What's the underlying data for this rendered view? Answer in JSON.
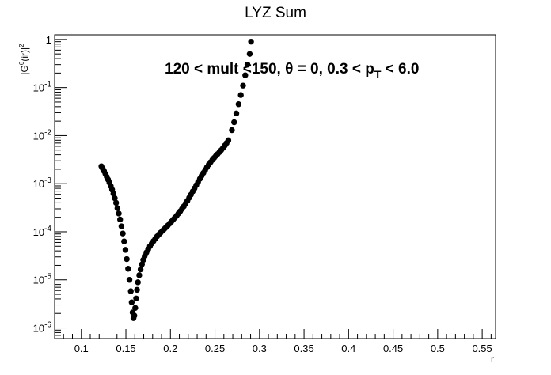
{
  "chart_data": {
    "type": "scatter",
    "title": "LYZ Sum",
    "xlabel": "r",
    "ylabel": "|Gθ(ir)|2",
    "annotation": "120 < mult <150, θ = 0, 0.3 < pT < 6.0",
    "x_scale": "linear",
    "y_scale": "log",
    "xlim": [
      0.07,
      0.565
    ],
    "ylim": [
      6e-07,
      1.25
    ],
    "grid": false,
    "legend": "none",
    "marker_color": "#000000",
    "x_ticks": [
      "0.1",
      "0.15",
      "0.2",
      "0.25",
      "0.3",
      "0.35",
      "0.4",
      "0.45",
      "0.5",
      "0.55"
    ],
    "y_ticks": [
      {
        "base": "10",
        "exp": "-6"
      },
      {
        "base": "10",
        "exp": "-5"
      },
      {
        "base": "10",
        "exp": "-4"
      },
      {
        "base": "10",
        "exp": "-3"
      },
      {
        "base": "10",
        "exp": "-2"
      },
      {
        "base": "10",
        "exp": "-1"
      },
      {
        "base": "1",
        "exp": ""
      }
    ],
    "series": [
      {
        "points": [
          [
            0.1225,
            0.0023
          ],
          [
            0.124,
            0.00205
          ],
          [
            0.1255,
            0.00182
          ],
          [
            0.127,
            0.0016
          ],
          [
            0.1285,
            0.0014
          ],
          [
            0.13,
            0.00122
          ],
          [
            0.1315,
            0.00105
          ],
          [
            0.133,
            0.00089
          ],
          [
            0.1345,
            0.00075
          ],
          [
            0.136,
            0.00062
          ],
          [
            0.1375,
            0.0005
          ],
          [
            0.139,
            0.0004
          ],
          [
            0.1405,
            0.00031
          ],
          [
            0.142,
            0.00024
          ],
          [
            0.1435,
            0.00018
          ],
          [
            0.145,
            0.00013
          ],
          [
            0.1465,
            9.2e-05
          ],
          [
            0.148,
            6.3e-05
          ],
          [
            0.1495,
            4.2e-05
          ],
          [
            0.151,
            2.7e-05
          ],
          [
            0.1525,
            1.7e-05
          ],
          [
            0.154,
            1e-05
          ],
          [
            0.1555,
            5.8e-06
          ],
          [
            0.1565,
            3.4e-06
          ],
          [
            0.1575,
            2.1e-06
          ],
          [
            0.1585,
            1.6e-06
          ],
          [
            0.1595,
            1.8e-06
          ],
          [
            0.1605,
            2.6e-06
          ],
          [
            0.1615,
            4.1e-06
          ],
          [
            0.1625,
            6.2e-06
          ],
          [
            0.1635,
            8.9e-06
          ],
          [
            0.165,
            1.25e-05
          ],
          [
            0.1665,
            1.65e-05
          ],
          [
            0.168,
            2.1e-05
          ],
          [
            0.1695,
            2.6e-05
          ],
          [
            0.171,
            3.1e-05
          ],
          [
            0.173,
            3.7e-05
          ],
          [
            0.175,
            4.3e-05
          ],
          [
            0.177,
            5e-05
          ],
          [
            0.179,
            5.7e-05
          ],
          [
            0.181,
            6.4e-05
          ],
          [
            0.183,
            7.2e-05
          ],
          [
            0.185,
            8e-05
          ],
          [
            0.187,
            8.8e-05
          ],
          [
            0.189,
            9.6e-05
          ],
          [
            0.191,
            0.000105
          ],
          [
            0.193,
            0.000114
          ],
          [
            0.195,
            0.000124
          ],
          [
            0.197,
            0.000135
          ],
          [
            0.199,
            0.000148
          ],
          [
            0.201,
            0.000162
          ],
          [
            0.203,
            0.000178
          ],
          [
            0.205,
            0.000196
          ],
          [
            0.207,
            0.000216
          ],
          [
            0.209,
            0.00024
          ],
          [
            0.211,
            0.000268
          ],
          [
            0.213,
            0.0003
          ],
          [
            0.215,
            0.000338
          ],
          [
            0.217,
            0.000385
          ],
          [
            0.219,
            0.00044
          ],
          [
            0.221,
            0.00051
          ],
          [
            0.223,
            0.00059
          ],
          [
            0.225,
            0.00069
          ],
          [
            0.227,
            0.0008
          ],
          [
            0.229,
            0.00093
          ],
          [
            0.231,
            0.00108
          ],
          [
            0.233,
            0.00126
          ],
          [
            0.235,
            0.00146
          ],
          [
            0.237,
            0.00168
          ],
          [
            0.239,
            0.00193
          ],
          [
            0.241,
            0.0022
          ],
          [
            0.243,
            0.0025
          ],
          [
            0.245,
            0.0028
          ],
          [
            0.247,
            0.00312
          ],
          [
            0.249,
            0.00345
          ],
          [
            0.251,
            0.0038
          ],
          [
            0.253,
            0.00415
          ],
          [
            0.255,
            0.00455
          ],
          [
            0.257,
            0.005
          ],
          [
            0.259,
            0.00555
          ],
          [
            0.261,
            0.0062
          ],
          [
            0.263,
            0.007
          ],
          [
            0.265,
            0.008
          ],
          [
            0.269,
            0.013
          ],
          [
            0.2715,
            0.019
          ],
          [
            0.274,
            0.029
          ],
          [
            0.2765,
            0.045
          ],
          [
            0.279,
            0.07
          ],
          [
            0.2815,
            0.11
          ],
          [
            0.284,
            0.18
          ],
          [
            0.2865,
            0.3
          ],
          [
            0.289,
            0.5
          ],
          [
            0.2905,
            0.9
          ]
        ]
      }
    ]
  }
}
